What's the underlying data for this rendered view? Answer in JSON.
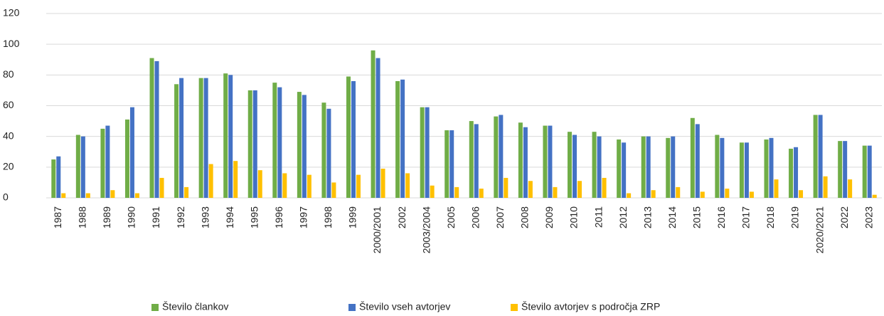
{
  "chart_data": {
    "type": "bar",
    "categories": [
      "1987",
      "1988",
      "1989",
      "1990",
      "1991",
      "1992",
      "1993",
      "1994",
      "1995",
      "1996",
      "1997",
      "1998",
      "1999",
      "2000/2001",
      "2002",
      "2003/2004",
      "2005",
      "2006",
      "2007",
      "2008",
      "2009",
      "2010",
      "2011",
      "2012",
      "2013",
      "2014",
      "2015",
      "2016",
      "2017",
      "2018",
      "2019",
      "2020/2021",
      "2022",
      "2023"
    ],
    "series": [
      {
        "name": "Število člankov",
        "color": "#70ad47",
        "values": [
          25,
          41,
          45,
          51,
          91,
          74,
          78,
          81,
          70,
          75,
          69,
          62,
          79,
          96,
          76,
          59,
          44,
          50,
          53,
          49,
          47,
          43,
          43,
          38,
          40,
          39,
          52,
          41,
          36,
          38,
          32,
          54,
          37,
          34
        ]
      },
      {
        "name": "Število vseh avtorjev",
        "color": "#4472c4",
        "values": [
          27,
          40,
          47,
          59,
          89,
          78,
          78,
          80,
          70,
          72,
          67,
          58,
          76,
          91,
          77,
          59,
          44,
          48,
          54,
          46,
          47,
          41,
          40,
          36,
          40,
          40,
          48,
          39,
          36,
          39,
          33,
          54,
          37,
          34
        ]
      },
      {
        "name": "Število avtorjev s področja ZRP",
        "color": "#ffc000",
        "values": [
          3,
          3,
          5,
          3,
          13,
          7,
          22,
          24,
          18,
          16,
          15,
          10,
          15,
          19,
          16,
          8,
          7,
          6,
          13,
          11,
          7,
          11,
          13,
          3,
          5,
          7,
          4,
          6,
          4,
          12,
          5,
          14,
          12,
          2
        ]
      }
    ],
    "ylim": [
      0,
      120
    ],
    "yticks": [
      0,
      20,
      40,
      60,
      80,
      100,
      120
    ],
    "grid": true,
    "legend": "bottom"
  }
}
